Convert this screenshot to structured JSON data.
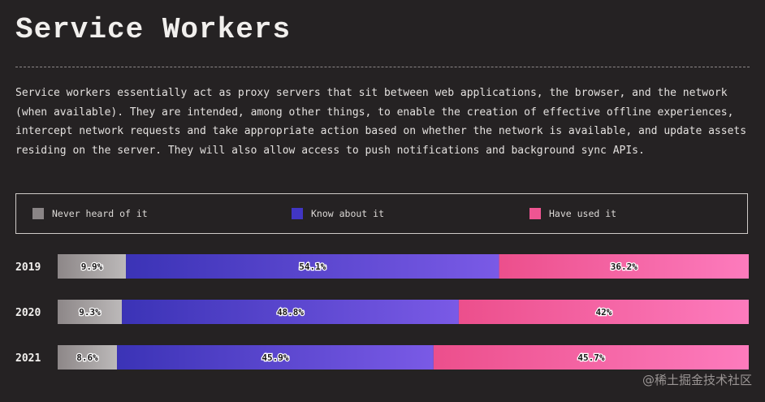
{
  "title": "Service Workers",
  "description": "Service workers essentially act as proxy servers that sit between web applications, the browser, and the network (when available). They are intended, among other things, to enable the creation of effective offline experiences, intercept network requests and take appropriate action based on whether the network is available, and update assets residing on the server. They will also allow access to push notifications and background sync APIs.",
  "colors": {
    "never": [
      "#8d8788",
      "#bcb9b9"
    ],
    "know": [
      "#3b33b6",
      "#7a5ae6"
    ],
    "used": [
      "#ec4f8c",
      "#fd7bbd"
    ]
  },
  "legend": [
    {
      "key": "never",
      "label": "Never heard of it",
      "color": "#8a8586"
    },
    {
      "key": "know",
      "label": "Know about it",
      "color": "#4136c4"
    },
    {
      "key": "used",
      "label": "Have used it",
      "color": "#ef5592"
    }
  ],
  "watermark": "@稀土掘金技术社区",
  "chart_data": {
    "type": "bar",
    "stacked": true,
    "orientation": "horizontal",
    "unit": "%",
    "categories": [
      "2019",
      "2020",
      "2021"
    ],
    "series": [
      {
        "name": "Never heard of it",
        "key": "never",
        "values": [
          9.9,
          9.3,
          8.6
        ],
        "labels": [
          "9.9%",
          "9.3%",
          "8.6%"
        ]
      },
      {
        "name": "Know about it",
        "key": "know",
        "values": [
          54.1,
          48.8,
          45.9
        ],
        "labels": [
          "54.1%",
          "48.8%",
          "45.9%"
        ]
      },
      {
        "name": "Have used it",
        "key": "used",
        "values": [
          36.2,
          42,
          45.7
        ],
        "labels": [
          "36.2%",
          "42%",
          "45.7%"
        ]
      }
    ],
    "legend_position": "top",
    "grid": false
  }
}
